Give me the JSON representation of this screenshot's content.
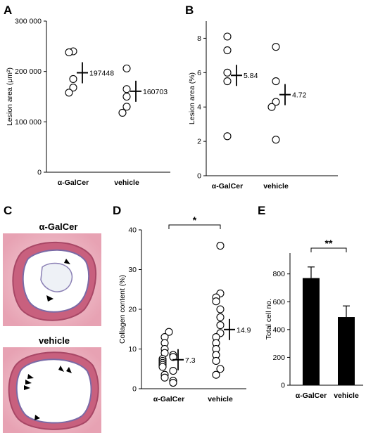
{
  "figure": {
    "panels": {
      "A": "A",
      "B": "B",
      "C": "C",
      "D": "D",
      "E": "E"
    },
    "images": {
      "top_title": "α-GalCer",
      "bottom_title": "vehicle"
    }
  },
  "chart_data": [
    {
      "panel": "A",
      "type": "scatter",
      "ylabel": "Lesion area  (μm²)",
      "ylim": [
        0,
        300000
      ],
      "yticks": [
        0,
        100000,
        200000,
        300000
      ],
      "yticklabels": [
        "0",
        "100 000",
        "200 000",
        "300 000"
      ],
      "categories": [
        "α-GalCer",
        "vehicle"
      ],
      "points": [
        [
          240000,
          238000,
          185000,
          168000,
          158000
        ],
        [
          206000,
          165000,
          150000,
          130000,
          118000
        ]
      ],
      "means": [
        197448,
        160703
      ],
      "mean_labels": [
        "197448",
        "160703"
      ]
    },
    {
      "panel": "B",
      "type": "scatter",
      "ylabel": "Lesion area (%)",
      "ylim": [
        0,
        9
      ],
      "yticks": [
        0,
        2,
        4,
        6,
        8
      ],
      "yticklabels": [
        "0",
        "2",
        "4",
        "6",
        "8"
      ],
      "categories": [
        "α-GalCer",
        "vehicle"
      ],
      "points": [
        [
          8.1,
          7.3,
          6.0,
          5.5,
          2.3
        ],
        [
          7.5,
          5.5,
          4.3,
          4.0,
          2.1
        ]
      ],
      "means": [
        5.84,
        4.72
      ],
      "mean_labels": [
        "5.84",
        "4.72"
      ]
    },
    {
      "panel": "D",
      "type": "scatter",
      "ylabel": "Collagen content (%)",
      "ylim": [
        0,
        40
      ],
      "yticks": [
        0,
        10,
        20,
        30,
        40
      ],
      "yticklabels": [
        "0",
        "10",
        "20",
        "30",
        "40"
      ],
      "categories": [
        "α-GalCer",
        "vehicle"
      ],
      "points": [
        [
          14.3,
          13.0,
          11.5,
          10.0,
          9.0,
          8.5,
          8.0,
          7.5,
          7.0,
          6.5,
          6.0,
          5.5,
          4.5,
          3.5,
          2.8,
          2.0,
          1.5
        ],
        [
          36.0,
          24.0,
          23.0,
          22.0,
          20.0,
          18.0,
          16.0,
          14.0,
          13.0,
          11.5,
          10.0,
          8.5,
          7.0,
          5.0,
          3.5
        ]
      ],
      "means": [
        7.3,
        14.9
      ],
      "mean_labels": [
        "7.3",
        "14.9"
      ],
      "significance": "*"
    },
    {
      "panel": "E",
      "type": "bar",
      "ylabel": "Total cell no.",
      "ylim": [
        0,
        950
      ],
      "yticks": [
        0,
        200,
        400,
        600,
        800
      ],
      "yticklabels": [
        "0",
        "200",
        "400",
        "600",
        "800"
      ],
      "categories": [
        "α-GalCer",
        "vehicle"
      ],
      "values": [
        770,
        490
      ],
      "errors": [
        80,
        80
      ],
      "significance": "**"
    }
  ]
}
